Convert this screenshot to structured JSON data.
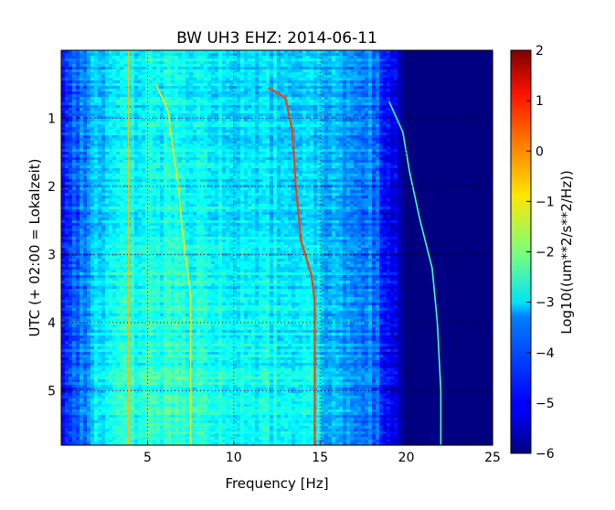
{
  "chart_data": {
    "type": "heatmap",
    "title": "BW UH3 EHZ: 2014-06-11",
    "xlabel": "Frequency [Hz]",
    "ylabel": "UTC (+ 02:00 = Lokalzeit)",
    "xlim": [
      0,
      25
    ],
    "ylim": [
      5.8,
      0
    ],
    "x_ticks": [
      5,
      10,
      15,
      20,
      25
    ],
    "y_ticks": [
      1,
      2,
      3,
      4,
      5
    ],
    "grid": true,
    "colormap": "jet",
    "colorbar": {
      "label": "Log10((um**2/s**2/Hz))",
      "range": [
        -6,
        2
      ],
      "ticks": [
        2,
        1,
        0,
        -1,
        -2,
        -3,
        -4,
        -5,
        -6
      ]
    },
    "background_level": {
      "description_levels": [
        {
          "freq": 0,
          "value": -4.8
        },
        {
          "freq": 2,
          "value": -3.6
        },
        {
          "freq": 5,
          "value": -3.0
        },
        {
          "freq": 10,
          "value": -3.3
        },
        {
          "freq": 15,
          "value": -3.5
        },
        {
          "freq": 18,
          "value": -4.0
        },
        {
          "freq": 20,
          "value": -6.0
        },
        {
          "freq": 25,
          "value": -6.0
        }
      ]
    },
    "series": [
      {
        "value": -0.8,
        "points": [
          [
            5.5,
            0.5
          ],
          [
            6.2,
            0.9
          ],
          [
            6.5,
            1.5
          ],
          [
            6.8,
            2.0
          ],
          [
            7.0,
            2.6
          ],
          [
            7.3,
            3.2
          ],
          [
            7.5,
            3.6
          ],
          [
            7.5,
            5.8
          ]
        ]
      },
      {
        "value": 0.5,
        "points": [
          [
            12.0,
            0.55
          ],
          [
            13.0,
            0.7
          ],
          [
            13.4,
            1.2
          ],
          [
            13.6,
            2.0
          ],
          [
            13.9,
            2.8
          ],
          [
            14.5,
            3.3
          ],
          [
            14.7,
            3.7
          ],
          [
            14.7,
            5.8
          ]
        ]
      },
      {
        "value": -2.5,
        "points": [
          [
            19.0,
            0.75
          ],
          [
            19.8,
            1.2
          ],
          [
            20.2,
            1.8
          ],
          [
            20.8,
            2.5
          ],
          [
            21.5,
            3.2
          ],
          [
            21.8,
            4.0
          ],
          [
            22.0,
            5.0
          ],
          [
            22.0,
            5.8
          ]
        ]
      },
      {
        "value": -0.5,
        "points": [
          [
            3.9,
            0
          ],
          [
            3.9,
            5.8
          ]
        ]
      }
    ]
  }
}
